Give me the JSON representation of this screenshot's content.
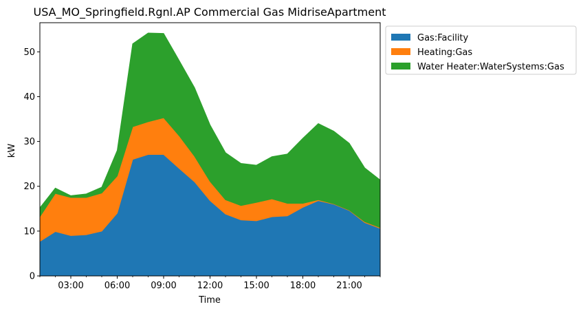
{
  "chart_data": {
    "type": "area",
    "stacked": true,
    "title": "USA_MO_Springfield.Rgnl.AP Commercial Gas MidriseApartment",
    "xlabel": "Time",
    "ylabel": "kW",
    "xlim": [
      1,
      23
    ],
    "ylim": [
      0,
      56.5
    ],
    "x": [
      1,
      2,
      3,
      4,
      5,
      6,
      7,
      8,
      9,
      10,
      11,
      12,
      13,
      14,
      15,
      16,
      17,
      18,
      19,
      20,
      21,
      22,
      23
    ],
    "x_ticks": [
      3,
      6,
      9,
      12,
      15,
      18,
      21
    ],
    "x_tick_labels": [
      "03:00",
      "06:00",
      "09:00",
      "12:00",
      "15:00",
      "18:00",
      "21:00"
    ],
    "y_ticks": [
      0,
      10,
      20,
      30,
      40,
      50
    ],
    "y_tick_labels": [
      "0",
      "10",
      "20",
      "30",
      "40",
      "50"
    ],
    "series": [
      {
        "name": "Gas:Facility",
        "color": "#1f77b4",
        "values": [
          7.7,
          9.9,
          9.0,
          9.2,
          10.0,
          14.0,
          26.0,
          27.1,
          27.1,
          24.0,
          21.0,
          16.8,
          13.8,
          12.5,
          12.3,
          13.2,
          13.4,
          15.3,
          16.8,
          16.0,
          14.6,
          11.9,
          10.6
        ]
      },
      {
        "name": "Heating:Gas",
        "color": "#ff7f0e",
        "values": [
          5.5,
          8.5,
          8.5,
          8.3,
          8.5,
          8.3,
          7.3,
          7.3,
          8.2,
          7.3,
          5.7,
          4.3,
          3.2,
          3.2,
          4.1,
          4.0,
          2.8,
          0.9,
          0.2,
          0.1,
          0.1,
          0.2,
          0.2
        ]
      },
      {
        "name": "Water Heater:WaterSystems:Gas",
        "color": "#2ca02c",
        "values": [
          2.0,
          1.2,
          0.4,
          0.8,
          1.3,
          5.7,
          18.5,
          19.8,
          18.8,
          16.8,
          15.3,
          12.6,
          10.5,
          9.4,
          8.3,
          9.4,
          11.0,
          14.5,
          17.0,
          16.2,
          14.9,
          12.0,
          10.6
        ]
      }
    ],
    "legend_position": "outside-right-top",
    "grid": false
  }
}
